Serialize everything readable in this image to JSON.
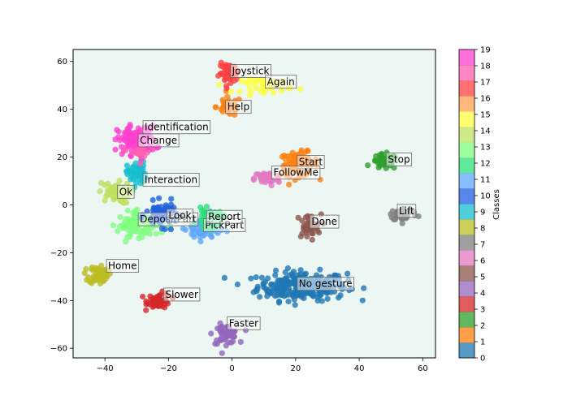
{
  "chart_data": {
    "type": "scatter",
    "xlim": [
      -50,
      64
    ],
    "ylim": [
      -64,
      65
    ],
    "xticks": [
      -40,
      -20,
      0,
      20,
      40,
      60
    ],
    "yticks": [
      -60,
      -40,
      -20,
      0,
      20,
      40,
      60
    ],
    "background": "#ecf6f2",
    "grid": false,
    "colorbar": {
      "label": "Classes",
      "ticks": [
        0,
        1,
        2,
        3,
        4,
        5,
        6,
        7,
        8,
        9,
        10,
        11,
        12,
        13,
        14,
        15,
        16,
        17,
        18,
        19
      ],
      "colors": [
        "#1f77b4",
        "#ff7f0e",
        "#2ca02c",
        "#d62728",
        "#9467bd",
        "#8c564b",
        "#e377c2",
        "#7f7f7f",
        "#bcbd22",
        "#17becf",
        "#1f5fe0",
        "#5fa8ff",
        "#2ce07a",
        "#7fff7f",
        "#bfe060",
        "#ffff40",
        "#ffa050",
        "#ff4040",
        "#ff60b0",
        "#ff40d0"
      ]
    },
    "clusters": [
      {
        "name": "No gesture",
        "class": 0,
        "cx": 22,
        "cy": -34,
        "sx": 7,
        "sy": 3,
        "n": 260,
        "label_xy": [
          21,
          -33
        ]
      },
      {
        "name": "Start",
        "class": 1,
        "cx": 21,
        "cy": 17,
        "sx": 3,
        "sy": 2.5,
        "n": 90,
        "label_xy": [
          21,
          18
        ]
      },
      {
        "name": "Help",
        "class": 1,
        "cx": -1,
        "cy": 41,
        "sx": 2,
        "sy": 2,
        "n": 40,
        "label_xy": [
          -1.5,
          41
        ]
      },
      {
        "name": "Stop",
        "class": 2,
        "cx": 48,
        "cy": 18,
        "sx": 2,
        "sy": 1.6,
        "n": 50,
        "label_xy": [
          49,
          19
        ]
      },
      {
        "name": "Slower",
        "class": 3,
        "cx": -23,
        "cy": -40,
        "sx": 1.8,
        "sy": 1.6,
        "n": 55,
        "label_xy": [
          -21,
          -37.5
        ]
      },
      {
        "name": "Faster",
        "class": 4,
        "cx": -2,
        "cy": -54,
        "sx": 2,
        "sy": 2,
        "n": 55,
        "label_xy": [
          -1,
          -49.5
        ]
      },
      {
        "name": "Done",
        "class": 5,
        "cx": 24,
        "cy": -9,
        "sx": 2,
        "sy": 2.5,
        "n": 40,
        "label_xy": [
          25,
          -7
        ]
      },
      {
        "name": "FollowMe",
        "class": 6,
        "cx": 11,
        "cy": 11,
        "sx": 2,
        "sy": 1.6,
        "n": 45,
        "label_xy": [
          13,
          13.5
        ]
      },
      {
        "name": "Lift",
        "class": 7,
        "cx": 54,
        "cy": -4,
        "sx": 2.2,
        "sy": 1.3,
        "n": 45,
        "label_xy": [
          52.5,
          -2.5
        ]
      },
      {
        "name": "Home",
        "class": 8,
        "cx": -42,
        "cy": -29,
        "sx": 1.5,
        "sy": 2,
        "n": 60,
        "label_xy": [
          -39,
          -25.5
        ]
      },
      {
        "name": "Ok",
        "class": 14,
        "cx": -37,
        "cy": 5,
        "sx": 2.5,
        "sy": 2.2,
        "n": 60,
        "label_xy": [
          -35.5,
          5.5
        ]
      },
      {
        "name": "Interaction",
        "class": 9,
        "cx": -30,
        "cy": 13,
        "sx": 1.5,
        "sy": 2.5,
        "n": 55,
        "label_xy": [
          -27.5,
          10.5
        ]
      },
      {
        "name": "Identification",
        "class": 19,
        "cx": -30,
        "cy": 27,
        "sx": 3,
        "sy": 3,
        "n": 120,
        "label_xy": [
          -27.5,
          32.5
        ]
      },
      {
        "name": "Change",
        "class": 18,
        "cx": -29,
        "cy": 22,
        "sx": 1.5,
        "sy": 2,
        "n": 20,
        "label_xy": [
          -29,
          27
        ]
      },
      {
        "name": "Joystick",
        "class": 17,
        "cx": -1,
        "cy": 55,
        "sx": 1.5,
        "sy": 2,
        "n": 55,
        "label_xy": [
          0,
          56
        ]
      },
      {
        "name": "Again",
        "class": 15,
        "cx": 11,
        "cy": 50,
        "sx": 4,
        "sy": 1.5,
        "n": 50,
        "label_xy": [
          11,
          51.5
        ]
      },
      {
        "name": "DepositPart",
        "class": 13,
        "cx": -29,
        "cy": -8,
        "sx": 3.5,
        "sy": 2.5,
        "n": 110,
        "label_xy": [
          -29,
          -6
        ]
      },
      {
        "name": "Look",
        "class": 10,
        "cx": -22,
        "cy": -4,
        "sx": 2.5,
        "sy": 2.5,
        "n": 70,
        "label_xy": [
          -20,
          -4.5
        ]
      },
      {
        "name": "PickPart",
        "class": 11,
        "cx": -9,
        "cy": -10,
        "sx": 2.5,
        "sy": 2.5,
        "n": 80,
        "label_xy": [
          -8.5,
          -8.5
        ]
      },
      {
        "name": "Report",
        "class": 12,
        "cx": -7,
        "cy": -6,
        "sx": 2,
        "sy": 2,
        "n": 50,
        "label_xy": [
          -7.5,
          -5
        ]
      }
    ]
  }
}
